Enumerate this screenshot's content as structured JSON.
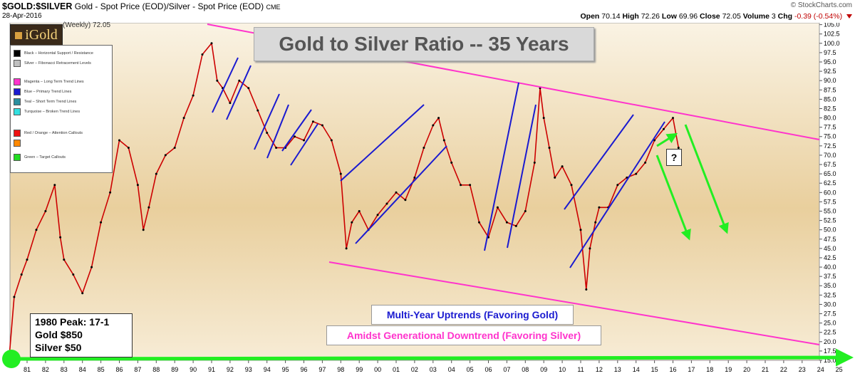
{
  "header": {
    "symbol": "$GOLD:$SILVER",
    "description": "Gold - Spot Price (EOD)/Silver - Spot Price (EOD)",
    "exchange": "CME",
    "date": "28-Apr-2016",
    "provider": "© StockCharts.com",
    "open_label": "Open",
    "open": "70.14",
    "high_label": "High",
    "high": "72.26",
    "low_label": "Low",
    "low": "69.96",
    "close_label": "Close",
    "close": "72.05",
    "volume_label": "Volume",
    "volume": "3",
    "chg_label": "Chg",
    "chg": "-0.39 (-0.54%)"
  },
  "logo": {
    "text": "iGold"
  },
  "weekly_label": "(Weekly) 72.05",
  "legend": {
    "items": [
      {
        "label": "Black – Horizontal Support / Resistance",
        "color": "#000000"
      },
      {
        "label": "Silver – Fibonacci Retracement Levels",
        "color": "#c0c0c0"
      },
      {
        "label": "Magenta – Long Term Trend Lines",
        "color": "#ff33cc"
      },
      {
        "label": "Blue – Primary Trend Lines",
        "color": "#1a1ad0"
      },
      {
        "label": "Teal – Short Term Trend Lines",
        "color": "#2a8f9f"
      },
      {
        "label": "Turquoise – Broken Trend Lines",
        "color": "#33e0e0"
      },
      {
        "label": "Red / Orange – Attention Callouts",
        "color": "#ee1111"
      },
      {
        "label": "",
        "color": "#ff8800"
      },
      {
        "label": "Green – Target Callouts",
        "color": "#22dd22"
      }
    ]
  },
  "annotations": {
    "title": "Gold to Silver Ratio -- 35 Years",
    "uptrends": "Multi-Year Uptrends (Favoring Gold)",
    "downtrend": "Amidst Generational Downtrend (Favoring Silver)",
    "peak_line1": "1980 Peak: 17-1",
    "peak_line2": "Gold $850",
    "peak_line3": "Silver $50",
    "question": "?"
  },
  "colors": {
    "bg_top": "#faf3e4",
    "bg_mid": "#e9cf9d",
    "bg_bottom": "#f7ecd6",
    "price": "#cc0000",
    "magenta": "#ff33cc",
    "blue": "#1a1ad0",
    "green": "#22ee22"
  },
  "chart_data": {
    "type": "line",
    "title": "Gold to Silver Ratio -- 35 Years",
    "series_label": "$GOLD:$SILVER (Weekly) 72.05",
    "ylim": [
      15,
      105.5
    ],
    "y_ticks": [
      15.0,
      17.5,
      20.0,
      22.5,
      25.0,
      27.5,
      30.0,
      32.5,
      35.0,
      37.5,
      40.0,
      42.5,
      45.0,
      47.5,
      50.0,
      52.5,
      55.0,
      57.5,
      60.0,
      62.5,
      65.0,
      67.5,
      70.0,
      72.5,
      75.0,
      77.5,
      80.0,
      82.5,
      85.0,
      87.5,
      90.0,
      92.5,
      95.0,
      97.5,
      100.0,
      102.5,
      105.0
    ],
    "x_ticks": [
      "81",
      "82",
      "83",
      "84",
      "85",
      "86",
      "87",
      "88",
      "89",
      "90",
      "91",
      "92",
      "93",
      "94",
      "95",
      "96",
      "97",
      "98",
      "99",
      "00",
      "01",
      "02",
      "03",
      "04",
      "05",
      "06",
      "07",
      "08",
      "09",
      "10",
      "11",
      "12",
      "13",
      "14",
      "15",
      "16",
      "17",
      "18",
      "19",
      "20",
      "21",
      "22",
      "23",
      "24",
      "25"
    ],
    "x": [
      1980.05,
      1980.3,
      1980.7,
      1981.0,
      1981.5,
      1982.0,
      1982.5,
      1982.8,
      1983.0,
      1983.5,
      1984.0,
      1984.5,
      1985.0,
      1985.5,
      1986.0,
      1986.5,
      1987.0,
      1987.3,
      1987.6,
      1988.0,
      1988.5,
      1989.0,
      1989.5,
      1990.0,
      1990.5,
      1991.0,
      1991.3,
      1991.6,
      1992.0,
      1992.5,
      1993.0,
      1993.5,
      1994.0,
      1994.5,
      1995.0,
      1995.5,
      1996.0,
      1996.5,
      1997.0,
      1997.5,
      1998.0,
      1998.3,
      1998.6,
      1999.0,
      1999.5,
      2000.0,
      2000.5,
      2001.0,
      2001.5,
      2002.0,
      2002.5,
      2003.0,
      2003.3,
      2003.6,
      2004.0,
      2004.5,
      2005.0,
      2005.5,
      2006.0,
      2006.5,
      2007.0,
      2007.5,
      2008.0,
      2008.5,
      2008.8,
      2009.0,
      2009.3,
      2009.6,
      2010.0,
      2010.5,
      2011.0,
      2011.3,
      2011.5,
      2011.8,
      2012.0,
      2012.5,
      2013.0,
      2013.5,
      2014.0,
      2014.5,
      2015.0,
      2015.5,
      2016.0,
      2016.3
    ],
    "values": [
      17.0,
      32.0,
      38.0,
      42.0,
      50.0,
      55.0,
      62.0,
      48.0,
      42.0,
      38.0,
      33.0,
      40.0,
      52.0,
      60.0,
      74.0,
      72.0,
      62.0,
      50.0,
      56.0,
      65.0,
      70.0,
      72.0,
      80.0,
      86.0,
      97.0,
      100.0,
      90.0,
      88.0,
      84.0,
      90.0,
      88.0,
      82.0,
      76.0,
      72.0,
      72.0,
      75.0,
      74.0,
      79.0,
      78.0,
      74.0,
      65.0,
      45.0,
      52.0,
      55.0,
      50.0,
      54.0,
      57.0,
      60.0,
      58.0,
      64.0,
      72.0,
      78.0,
      80.0,
      74.0,
      68.0,
      62.0,
      62.0,
      52.0,
      48.0,
      56.0,
      52.0,
      51.0,
      55.0,
      68.0,
      88.0,
      80.0,
      72.0,
      64.0,
      67.0,
      62.0,
      50.0,
      34.0,
      45.0,
      52.0,
      56.0,
      56.0,
      62.0,
      64.0,
      65.0,
      68.0,
      74.0,
      77.0,
      80.0,
      72.0
    ]
  }
}
